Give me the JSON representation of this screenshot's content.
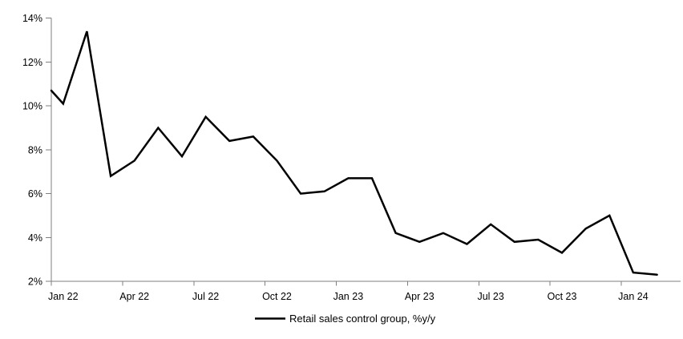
{
  "chart_data": {
    "type": "line",
    "title": "",
    "background": "#ffffff",
    "axis_color": "#7f7f7f",
    "grid": "off",
    "legend": {
      "label": "Retail sales control group, %y/y",
      "position": "bottom-center",
      "line_color": "#000000"
    },
    "y_axis": {
      "min": 2,
      "max": 14,
      "step": 2,
      "unit": "%",
      "tick_labels": [
        "14%",
        "12%",
        "10%",
        "8%",
        "6%",
        "4%",
        "2%"
      ]
    },
    "x_axis": {
      "tick_labels": [
        "Jan 22",
        "Apr 22",
        "Jul 22",
        "Oct 22",
        "Jan 23",
        "Apr 23",
        "Jul 23",
        "Oct 23",
        "Jan 24"
      ],
      "months_per_tick": 3
    },
    "series": [
      {
        "name": "Retail sales control group, %y/y",
        "color": "#000000",
        "left_edge_start_value": 10.7,
        "x": [
          "Jan 22",
          "Feb 22",
          "Mar 22",
          "Apr 22",
          "May 22",
          "Jun 22",
          "Jul 22",
          "Aug 22",
          "Sep 22",
          "Oct 22",
          "Nov 22",
          "Dec 22",
          "Jan 23",
          "Feb 23",
          "Mar 23",
          "Apr 23",
          "May 23",
          "Jun 23",
          "Jul 23",
          "Aug 23",
          "Sep 23",
          "Oct 23",
          "Nov 23",
          "Dec 23",
          "Jan 24",
          "Feb 24"
        ],
        "values": [
          10.1,
          13.4,
          6.8,
          7.5,
          9.0,
          7.7,
          9.5,
          8.4,
          8.6,
          7.5,
          6.0,
          6.1,
          6.7,
          6.7,
          4.2,
          3.8,
          4.2,
          3.7,
          4.6,
          3.8,
          3.9,
          3.3,
          4.4,
          5.0,
          2.4,
          2.3
        ]
      }
    ]
  }
}
